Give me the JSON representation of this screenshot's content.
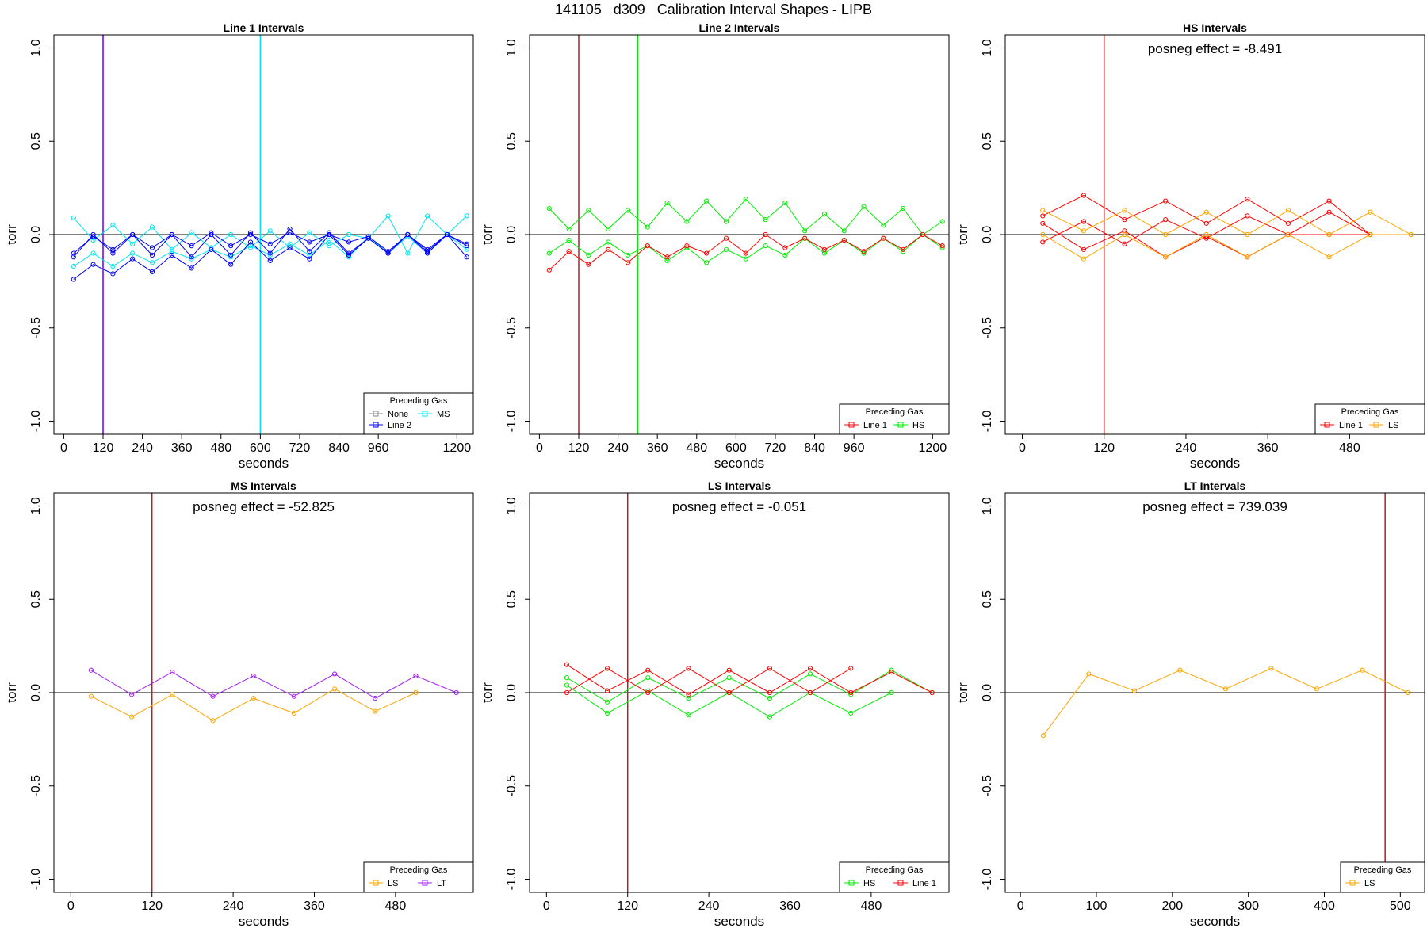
{
  "title": "141105   d309   Calibration Interval Shapes - LIPB",
  "colors": {
    "none": "#888888",
    "line1": "#ff0000",
    "line2": "#0000ff",
    "hs": "#00ee00",
    "ms": "#00e5ee",
    "ls": "#ffa500",
    "lt": "#a020f0"
  },
  "chart_data": [
    {
      "type": "line",
      "title": "Line 1 Intervals",
      "xlabel": "seconds",
      "ylabel": "torr",
      "xlim": [
        -30,
        1250
      ],
      "ylim": [
        -1.07,
        1.07
      ],
      "xticks": [
        0,
        120,
        240,
        360,
        480,
        600,
        720,
        840,
        960,
        1200
      ],
      "yticks": [
        -1.0,
        -0.5,
        0.0,
        0.5,
        1.0
      ],
      "hline": 0,
      "vlines": [
        {
          "x": 120,
          "color": "#0000ff"
        },
        {
          "x": 120,
          "color": "#a020f0"
        },
        {
          "x": 600,
          "color": "#00e5ee"
        }
      ],
      "legend": {
        "title": "Preceding Gas",
        "position": "bottom-right",
        "entries": [
          {
            "label": "None",
            "color": "#888888"
          },
          {
            "label": "MS",
            "color": "#00e5ee"
          },
          {
            "label": "Line 2",
            "color": "#0000ff"
          }
        ]
      },
      "series": [
        {
          "color": "#00e5ee",
          "x": [
            30,
            90,
            150,
            210,
            270,
            330,
            390,
            450,
            510,
            570,
            630,
            690,
            750,
            810,
            870,
            930,
            990,
            1050,
            1110,
            1170,
            1230
          ],
          "y": [
            0.09,
            -0.03,
            0.05,
            -0.05,
            0.04,
            -0.08,
            0.01,
            -0.07,
            0.0,
            -0.07,
            0.02,
            -0.07,
            0.01,
            -0.06,
            0.0,
            -0.02,
            0.1,
            -0.1,
            0.1,
            0.0,
            0.1
          ]
        },
        {
          "color": "#00e5ee",
          "x": [
            30,
            90,
            150,
            210,
            270,
            330,
            390,
            450,
            510,
            570,
            630,
            690,
            750,
            810,
            870,
            930,
            990,
            1050,
            1110,
            1170,
            1230
          ],
          "y": [
            -0.17,
            -0.1,
            -0.17,
            -0.1,
            -0.15,
            -0.09,
            -0.13,
            -0.08,
            -0.12,
            -0.06,
            -0.11,
            -0.05,
            -0.11,
            -0.03,
            -0.12,
            -0.01,
            -0.1,
            -0.01,
            -0.1,
            0.0,
            -0.08
          ]
        },
        {
          "color": "#0000ff",
          "x": [
            30,
            90,
            150,
            210,
            270,
            330,
            390,
            450,
            510,
            570,
            630,
            690,
            750,
            810,
            870,
            930,
            990,
            1050,
            1110,
            1170,
            1230
          ],
          "y": [
            -0.24,
            -0.16,
            -0.21,
            -0.13,
            -0.2,
            -0.11,
            -0.18,
            -0.08,
            -0.16,
            -0.04,
            -0.14,
            -0.07,
            -0.13,
            0.0,
            -0.11,
            -0.02,
            -0.1,
            0.0,
            -0.09,
            0.0,
            -0.12
          ]
        },
        {
          "color": "#0000ff",
          "x": [
            30,
            90,
            150,
            210,
            270,
            330,
            390,
            450,
            510,
            570,
            630,
            690,
            750,
            810,
            870,
            930,
            990,
            1050,
            1110,
            1170,
            1230
          ],
          "y": [
            -0.12,
            0.0,
            -0.1,
            0.0,
            -0.11,
            0.0,
            -0.12,
            0.0,
            -0.11,
            0.01,
            -0.1,
            0.03,
            -0.09,
            0.01,
            -0.1,
            -0.02,
            -0.1,
            0.0,
            -0.1,
            0.0,
            -0.05
          ]
        },
        {
          "color": "#0000ff",
          "x": [
            30,
            90,
            150,
            210,
            270,
            330,
            390,
            450,
            510,
            570,
            630,
            690,
            750,
            810,
            870,
            930,
            990,
            1050,
            1110,
            1170,
            1230
          ],
          "y": [
            -0.1,
            -0.01,
            -0.08,
            0.0,
            -0.07,
            0.0,
            -0.06,
            0.01,
            -0.06,
            0.0,
            -0.05,
            0.01,
            -0.04,
            0.0,
            -0.04,
            -0.01,
            -0.09,
            0.0,
            -0.08,
            0.0,
            -0.06
          ]
        }
      ]
    },
    {
      "type": "line",
      "title": "Line 2 Intervals",
      "xlabel": "seconds",
      "ylabel": "torr",
      "xlim": [
        -30,
        1250
      ],
      "ylim": [
        -1.07,
        1.07
      ],
      "xticks": [
        0,
        120,
        240,
        360,
        480,
        600,
        720,
        840,
        960,
        1200
      ],
      "yticks": [
        -1.0,
        -0.5,
        0.0,
        0.5,
        1.0
      ],
      "hline": 0,
      "vlines": [
        {
          "x": 120,
          "color": "#b22222"
        },
        {
          "x": 300,
          "color": "#00ee00"
        }
      ],
      "legend": {
        "title": "Preceding Gas",
        "position": "bottom-right",
        "entries": [
          {
            "label": "Line 1",
            "color": "#ff0000"
          },
          {
            "label": "HS",
            "color": "#00ee00"
          }
        ]
      },
      "series": [
        {
          "color": "#00ee00",
          "x": [
            30,
            90,
            150,
            210,
            270,
            330,
            390,
            450,
            510,
            570,
            630,
            690,
            750,
            810,
            870,
            930,
            990,
            1050,
            1110,
            1170,
            1230
          ],
          "y": [
            0.14,
            0.03,
            0.13,
            0.03,
            0.13,
            0.04,
            0.17,
            0.07,
            0.18,
            0.07,
            0.19,
            0.08,
            0.17,
            0.02,
            0.11,
            0.02,
            0.15,
            0.05,
            0.14,
            0.0,
            0.07
          ]
        },
        {
          "color": "#00ee00",
          "x": [
            30,
            90,
            150,
            210,
            270,
            330,
            390,
            450,
            510,
            570,
            630,
            690,
            750,
            810,
            870,
            930,
            990,
            1050,
            1110,
            1170,
            1230
          ],
          "y": [
            -0.1,
            -0.03,
            -0.11,
            -0.04,
            -0.11,
            -0.06,
            -0.14,
            -0.07,
            -0.15,
            -0.08,
            -0.13,
            -0.06,
            -0.11,
            -0.02,
            -0.1,
            -0.03,
            -0.1,
            -0.02,
            -0.09,
            0.0,
            -0.07
          ]
        },
        {
          "color": "#ff0000",
          "x": [
            30,
            90,
            150,
            210,
            270,
            330,
            390,
            450,
            510,
            570,
            630,
            690,
            750,
            810,
            870,
            930,
            990,
            1050,
            1110,
            1170,
            1230
          ],
          "y": [
            -0.19,
            -0.09,
            -0.16,
            -0.08,
            -0.15,
            -0.06,
            -0.12,
            -0.06,
            -0.1,
            -0.02,
            -0.1,
            0.0,
            -0.07,
            -0.02,
            -0.08,
            -0.03,
            -0.09,
            -0.02,
            -0.08,
            0.0,
            -0.06
          ]
        }
      ]
    },
    {
      "type": "line",
      "title": "HS Intervals",
      "annotation": "posneg effect = -8.491",
      "xlabel": "seconds",
      "ylabel": "torr",
      "xlim": [
        -25,
        590
      ],
      "ylim": [
        -1.07,
        1.07
      ],
      "xticks": [
        0,
        120,
        240,
        360,
        480
      ],
      "yticks": [
        -1.0,
        -0.5,
        0.0,
        0.5,
        1.0
      ],
      "hline": 0,
      "vlines": [
        {
          "x": 120,
          "color": "#b22222"
        }
      ],
      "legend": {
        "title": "Preceding Gas",
        "position": "bottom-right",
        "entries": [
          {
            "label": "Line 1",
            "color": "#ff0000"
          },
          {
            "label": "LS",
            "color": "#ffa500"
          }
        ]
      },
      "series": [
        {
          "color": "#ff0000",
          "x": [
            30,
            90,
            150,
            210,
            270,
            330,
            390,
            450,
            510
          ],
          "y": [
            0.1,
            0.21,
            0.08,
            0.18,
            0.06,
            0.19,
            0.06,
            0.18,
            0.0
          ]
        },
        {
          "color": "#ff0000",
          "x": [
            30,
            90,
            150,
            210,
            270,
            330,
            390,
            450,
            510
          ],
          "y": [
            0.06,
            -0.08,
            0.02,
            -0.12,
            -0.01,
            -0.12,
            0.0,
            0.12,
            0.0
          ]
        },
        {
          "color": "#ff0000",
          "x": [
            30,
            90,
            150,
            210,
            270,
            330,
            390,
            450,
            510
          ],
          "y": [
            -0.04,
            0.07,
            -0.05,
            0.08,
            -0.02,
            0.1,
            0.0,
            0.0,
            0.0
          ]
        },
        {
          "color": "#ffa500",
          "x": [
            30,
            90,
            150,
            210,
            270,
            330,
            390,
            450,
            510,
            570
          ],
          "y": [
            0.13,
            0.02,
            0.13,
            0.0,
            0.12,
            0.0,
            0.13,
            0.0,
            0.12,
            0.0
          ]
        },
        {
          "color": "#ffa500",
          "x": [
            30,
            90,
            150,
            210,
            270,
            330,
            390,
            450,
            510,
            570
          ],
          "y": [
            0.0,
            -0.13,
            0.0,
            -0.12,
            0.0,
            -0.12,
            0.0,
            -0.12,
            0.0,
            0.0
          ]
        }
      ]
    },
    {
      "type": "line",
      "title": "MS Intervals",
      "annotation": "posneg effect = -52.825",
      "xlabel": "seconds",
      "ylabel": "torr",
      "xlim": [
        -25,
        595
      ],
      "ylim": [
        -1.07,
        1.07
      ],
      "xticks": [
        0,
        120,
        240,
        360,
        480
      ],
      "yticks": [
        -1.0,
        -0.5,
        0.0,
        0.5,
        1.0
      ],
      "hline": 0,
      "vlines": [
        {
          "x": 120,
          "color": "#b22222"
        }
      ],
      "legend": {
        "title": "Preceding Gas",
        "position": "bottom-right",
        "entries": [
          {
            "label": "LS",
            "color": "#ffa500"
          },
          {
            "label": "LT",
            "color": "#a020f0"
          }
        ]
      },
      "series": [
        {
          "color": "#a020f0",
          "x": [
            30,
            90,
            150,
            210,
            270,
            330,
            390,
            450,
            510,
            570
          ],
          "y": [
            0.12,
            -0.01,
            0.11,
            -0.02,
            0.09,
            -0.02,
            0.1,
            -0.03,
            0.09,
            0.0
          ]
        },
        {
          "color": "#ffa500",
          "x": [
            30,
            90,
            150,
            210,
            270,
            330,
            390,
            450,
            510
          ],
          "y": [
            -0.02,
            -0.13,
            -0.01,
            -0.15,
            -0.03,
            -0.11,
            0.02,
            -0.1,
            0.0
          ]
        }
      ]
    },
    {
      "type": "line",
      "title": "LS Intervals",
      "annotation": "posneg effect = -0.051",
      "xlabel": "seconds",
      "ylabel": "torr",
      "xlim": [
        -25,
        595
      ],
      "ylim": [
        -1.07,
        1.07
      ],
      "xticks": [
        0,
        120,
        240,
        360,
        480
      ],
      "yticks": [
        -1.0,
        -0.5,
        0.0,
        0.5,
        1.0
      ],
      "hline": 0,
      "vlines": [
        {
          "x": 120,
          "color": "#b22222"
        }
      ],
      "legend": {
        "title": "Preceding Gas",
        "position": "bottom-right",
        "entries": [
          {
            "label": "HS",
            "color": "#00ee00"
          },
          {
            "label": "Line 1",
            "color": "#ff0000"
          }
        ]
      },
      "series": [
        {
          "color": "#00ee00",
          "x": [
            30,
            90,
            150,
            210,
            270,
            330,
            390,
            450,
            510,
            570
          ],
          "y": [
            0.08,
            -0.05,
            0.08,
            -0.03,
            0.08,
            -0.03,
            0.1,
            -0.01,
            0.12,
            0.0
          ]
        },
        {
          "color": "#00ee00",
          "x": [
            30,
            90,
            150,
            210,
            270,
            330,
            390,
            450,
            510
          ],
          "y": [
            0.04,
            -0.11,
            0.01,
            -0.12,
            0.0,
            -0.13,
            0.0,
            -0.11,
            0.0
          ]
        },
        {
          "color": "#ff0000",
          "x": [
            30,
            90,
            150,
            210,
            270,
            330,
            390,
            450,
            510,
            570
          ],
          "y": [
            0.15,
            0.01,
            0.12,
            -0.01,
            0.12,
            0.0,
            0.13,
            0.0,
            0.11,
            0.0
          ]
        },
        {
          "color": "#ff0000",
          "x": [
            30,
            90,
            150,
            210,
            270,
            330,
            390,
            450
          ],
          "y": [
            0.0,
            0.13,
            0.0,
            0.13,
            0.0,
            0.13,
            0.0,
            0.13
          ]
        }
      ]
    },
    {
      "type": "line",
      "title": "LT Intervals",
      "annotation": "posneg effect = 739.039",
      "xlabel": "seconds",
      "ylabel": "torr",
      "xlim": [
        -20,
        532
      ],
      "ylim": [
        -1.07,
        1.07
      ],
      "xticks": [
        0,
        100,
        200,
        300,
        400,
        500
      ],
      "yticks": [
        -1.0,
        -0.5,
        0.0,
        0.5,
        1.0
      ],
      "hline": 0,
      "vlines": [
        {
          "x": 480,
          "color": "#b22222"
        }
      ],
      "legend": {
        "title": "Preceding Gas",
        "position": "bottom-right",
        "entries": [
          {
            "label": "LS",
            "color": "#ffa500"
          }
        ]
      },
      "series": [
        {
          "color": "#ffa500",
          "x": [
            30,
            90,
            150,
            210,
            270,
            330,
            390,
            450,
            510
          ],
          "y": [
            -0.23,
            0.1,
            0.01,
            0.12,
            0.02,
            0.13,
            0.02,
            0.12,
            0.0
          ]
        }
      ]
    }
  ]
}
